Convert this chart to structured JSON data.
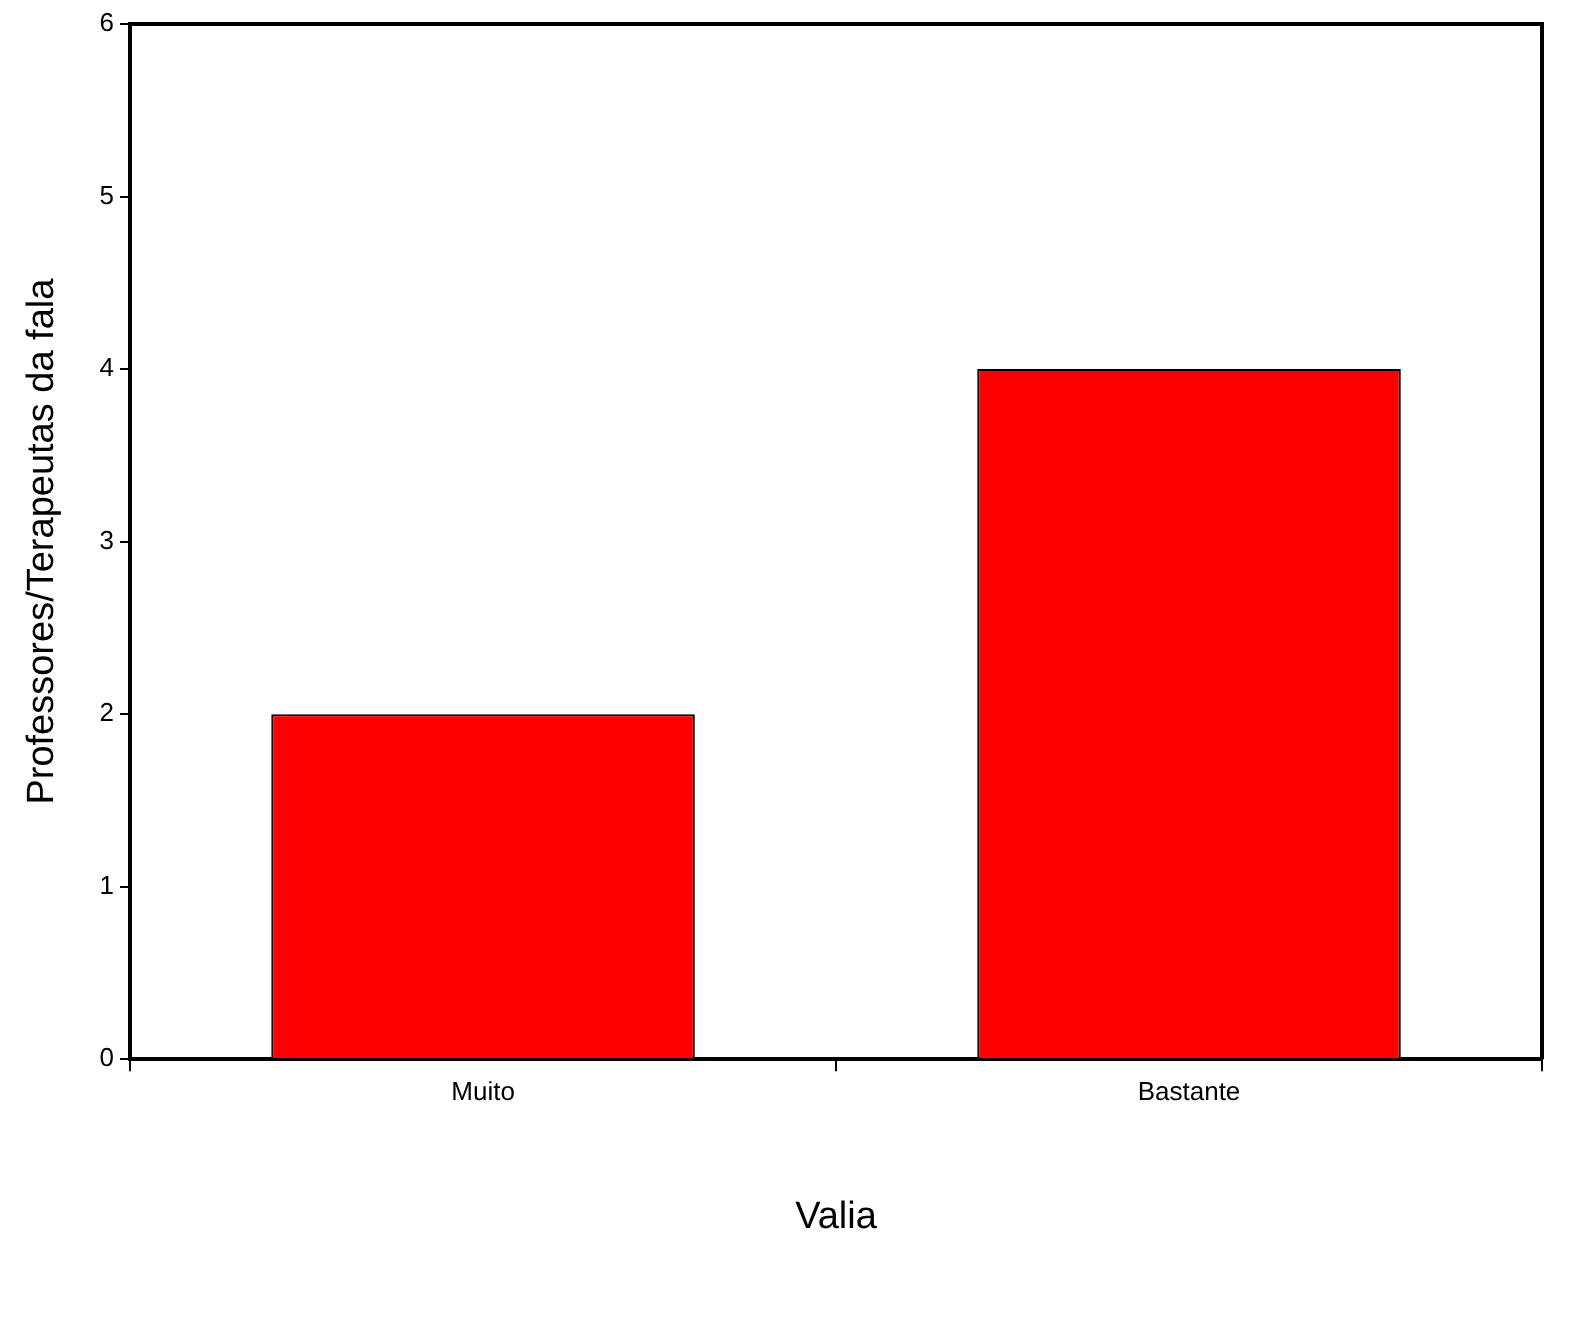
{
  "chart_data": {
    "type": "bar",
    "xlabel": "Valia",
    "ylabel": "Professores/Terapeutas da fala",
    "categories": [
      "Muito",
      "Bastante"
    ],
    "values": [
      2,
      4
    ],
    "color": "#ff0000",
    "ylim": [
      0,
      6
    ],
    "yticks": [
      0,
      1,
      2,
      3,
      4,
      5,
      6
    ],
    "grid": false,
    "legend": false
  }
}
